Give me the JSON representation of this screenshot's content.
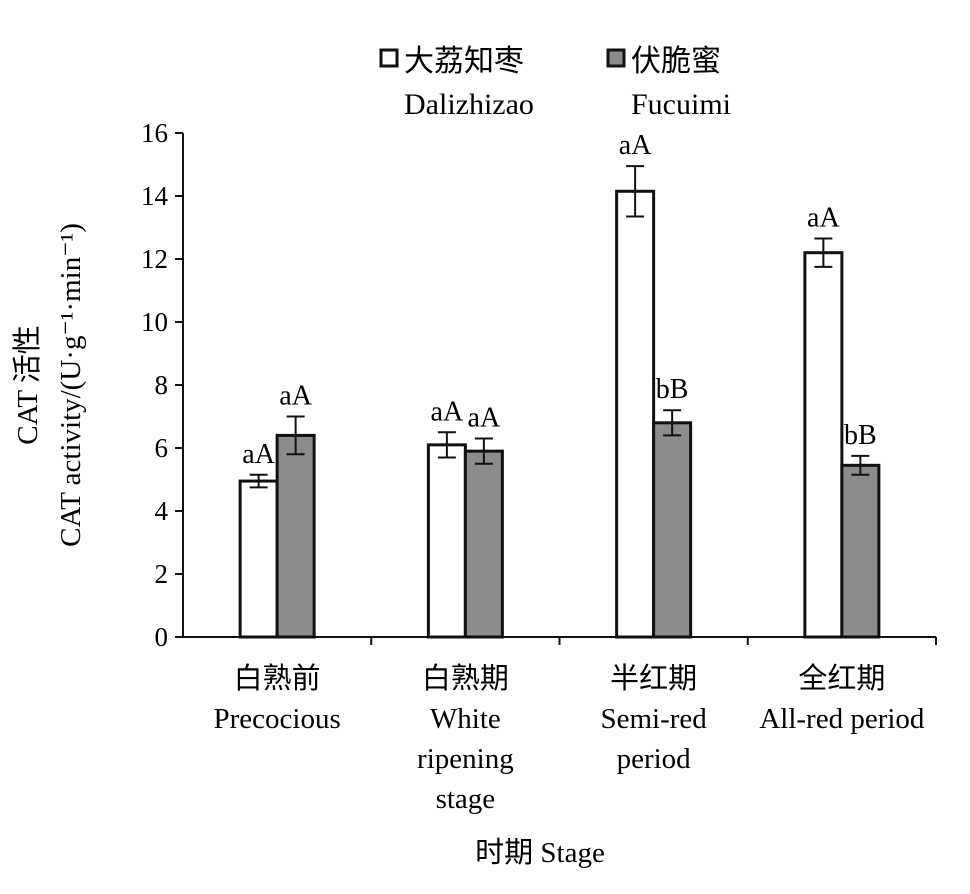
{
  "chart_data": {
    "type": "bar",
    "xlabel": "时期 Stage",
    "ylabel_lines": [
      "CAT 活性",
      "CAT activity/(U·g⁻¹·min⁻¹)"
    ],
    "ylim": [
      0,
      16
    ],
    "yticks": [
      0,
      2,
      4,
      6,
      8,
      10,
      12,
      14,
      16
    ],
    "categories": [
      [
        "白熟前",
        "Precocious"
      ],
      [
        "白熟期",
        "White",
        "ripening",
        "stage"
      ],
      [
        "半红期",
        "Semi-red",
        "period"
      ],
      [
        "全红期",
        "All-red period"
      ]
    ],
    "series": [
      {
        "name": "大荔知枣",
        "name_en": "Dalizhizao",
        "color": "#ffffff",
        "values": [
          4.95,
          6.1,
          14.15,
          12.2
        ],
        "errors": [
          0.2,
          0.4,
          0.8,
          0.45
        ],
        "labels": [
          "aA",
          "aA",
          "aA",
          "aA"
        ]
      },
      {
        "name": "伏脆蜜",
        "name_en": "Fucuimi",
        "color": "#8c8c8c",
        "values": [
          6.4,
          5.9,
          6.8,
          5.45
        ],
        "errors": [
          0.6,
          0.4,
          0.4,
          0.3
        ],
        "labels": [
          "aA",
          "aA",
          "bB",
          "bB"
        ]
      }
    ],
    "grid": false,
    "legend_position": "top"
  }
}
